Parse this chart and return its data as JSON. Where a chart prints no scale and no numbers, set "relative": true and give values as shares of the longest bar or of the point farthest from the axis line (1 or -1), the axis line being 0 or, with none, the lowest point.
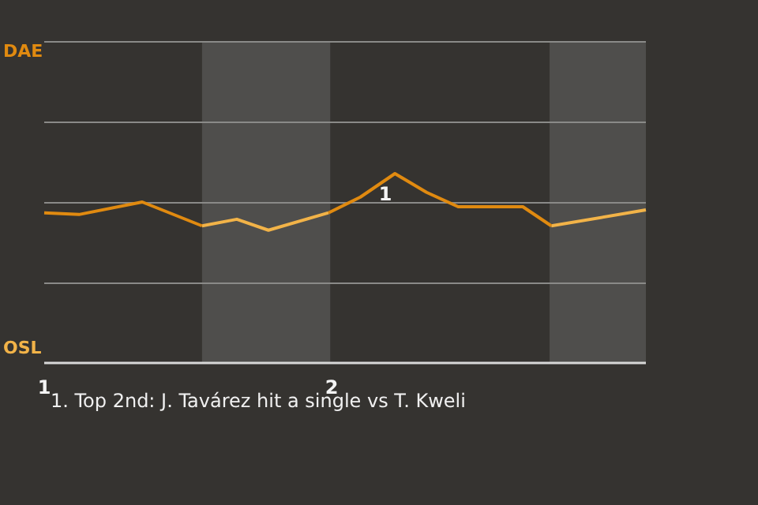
{
  "chart_data": {
    "type": "line",
    "relative": true,
    "series": [
      {
        "color": "#e08a10",
        "x": [
          1,
          1.121,
          1.341,
          1.549,
          null,
          1.989,
          2.1,
          2.22,
          2.33,
          2.44,
          2.665,
          2.764
        ],
        "values": [
          0.793,
          0.784,
          0.85,
          0.724,
          null,
          0.793,
          0.876,
          1,
          0.901,
          0.825,
          0.825,
          0.724
        ]
      },
      {
        "color": "#f2b348",
        "x": [
          1.549,
          1.67,
          1.78,
          1.989,
          null,
          2.764,
          3.093
        ],
        "values": [
          0.724,
          0.759,
          0.701,
          0.793,
          null,
          0.724,
          0.808
        ]
      }
    ],
    "xlim": [
      1,
      3.093
    ],
    "xticks": [
      1,
      2
    ],
    "ref_lines": [
      {
        "axis": "y",
        "value": 0.425,
        "label": null,
        "color": "#8a8a88"
      },
      {
        "axis": "y",
        "value": 0.85,
        "label": null,
        "color": "#8a8a88"
      },
      {
        "axis": "y",
        "value": 1.275,
        "label": null,
        "color": "#8a8a88"
      },
      {
        "axis": "y",
        "value": 1.7,
        "label": null,
        "color": "#8a8a88"
      }
    ],
    "legend": false,
    "marker": "none",
    "line_style": "solid",
    "bands": [
      {
        "axis": "x",
        "from": 1.549,
        "to": 1.995,
        "label": null,
        "color": "#4f4e4c"
      },
      {
        "axis": "x",
        "from": 2.758,
        "to": 3.093,
        "label": null,
        "color": "#4f4e4c"
      }
    ],
    "annotations": [
      "DAE",
      "OSL",
      {
        "text": "1",
        "x": 2.22,
        "y": 1
      },
      "1. Top 2nd: J. Tavárez hit a single vs T. Kweli"
    ]
  }
}
